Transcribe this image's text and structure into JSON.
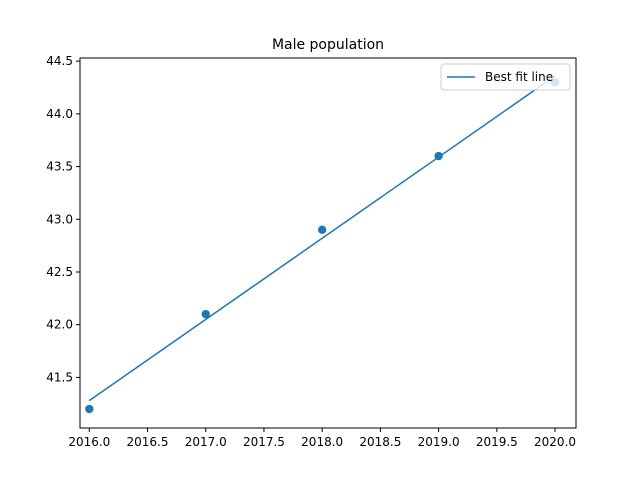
{
  "chart_data": {
    "type": "scatter",
    "title": "Male population",
    "xlabel": "",
    "ylabel": "",
    "xlim": [
      2015.92,
      2020.18
    ],
    "ylim": [
      41.02,
      44.53
    ],
    "x_ticks": [
      2016.0,
      2016.5,
      2017.0,
      2017.5,
      2018.0,
      2018.5,
      2019.0,
      2019.5,
      2020.0
    ],
    "x_tick_labels": [
      "2016.0",
      "2016.5",
      "2017.0",
      "2017.5",
      "2018.0",
      "2018.5",
      "2019.0",
      "2019.5",
      "2020.0"
    ],
    "y_ticks": [
      41.5,
      42.0,
      42.5,
      43.0,
      43.5,
      44.0,
      44.5
    ],
    "y_tick_labels": [
      "41.5",
      "42.0",
      "42.5",
      "43.0",
      "43.5",
      "44.0",
      "44.5"
    ],
    "grid": false,
    "legend_position": "top-right",
    "series": [
      {
        "kind": "scatter",
        "x": [
          2016,
          2017,
          2018,
          2019,
          2020
        ],
        "y": [
          41.2,
          42.1,
          42.9,
          43.6,
          44.3
        ],
        "color": "#1f77b4"
      },
      {
        "kind": "line",
        "name": "Best fit line",
        "x": [
          2016,
          2020
        ],
        "y": [
          41.28,
          44.36
        ],
        "color": "#1f77b4"
      }
    ]
  }
}
